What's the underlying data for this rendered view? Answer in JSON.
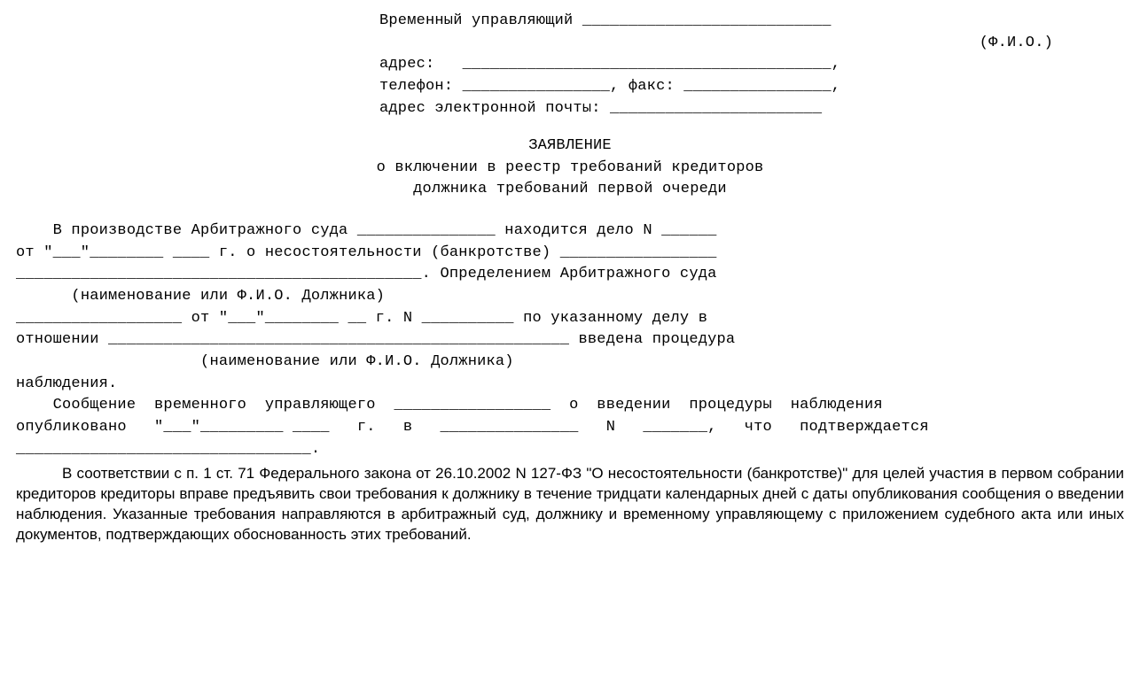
{
  "header": {
    "line1_label": "Временный управляющий",
    "line1_blank": "___________________________",
    "fio_note": "(Ф.И.О.)",
    "addr_label": "адрес:",
    "addr_blank": "________________________________________,",
    "tel_label": "телефон:",
    "tel_blank": "________________,",
    "fax_label": "факс:",
    "fax_blank": "________________,",
    "email_label": "адрес электронной почты:",
    "email_blank": "_______________________"
  },
  "title": {
    "l1": "ЗАЯВЛЕНИЕ",
    "l2": "о включении в реестр требований кредиторов",
    "l3": "должника требований первой очереди"
  },
  "body": {
    "p1_l1": "    В производстве Арбитражного суда _______________ находится дело N ______",
    "p1_l2": "от \"___\"________ ____ г. о несостоятельности (банкротстве) _________________",
    "p1_l3": "____________________________________________. Определением Арбитражного суда",
    "p1_note1": "      (наименование или Ф.И.О. Должника)",
    "p1_l4": "__________________ от \"___\"________ __ г. N __________ по указанному делу в",
    "p1_l5": "отношении __________________________________________________ введена процедура",
    "p1_note2": "                    (наименование или Ф.И.О. Должника)",
    "p1_l6": "наблюдения.",
    "p2_l1": "    Сообщение  временного  управляющего  _________________  о  введении  процедуры  наблюдения",
    "p2_l2": "опубликовано   \"___\"_________ ____   г.   в   _______________   N   _______,   что   подтверждается",
    "p2_l3": "________________________________.",
    "p3": "В соответствии с п. 1 ст. 71 Федерального закона от 26.10.2002 N 127-ФЗ \"О несостоятельности (банкротстве)\" для целей участия в первом собрании кредиторов кредиторы вправе предъявить свои требования к должнику в течение тридцати календарных дней с даты опубликования сообщения о введении наблюдения. Указанные требования направляются в арбитражный суд, должнику и временному управляющему с приложением судебного акта или иных документов, подтверждающих обоснованность этих требований."
  }
}
